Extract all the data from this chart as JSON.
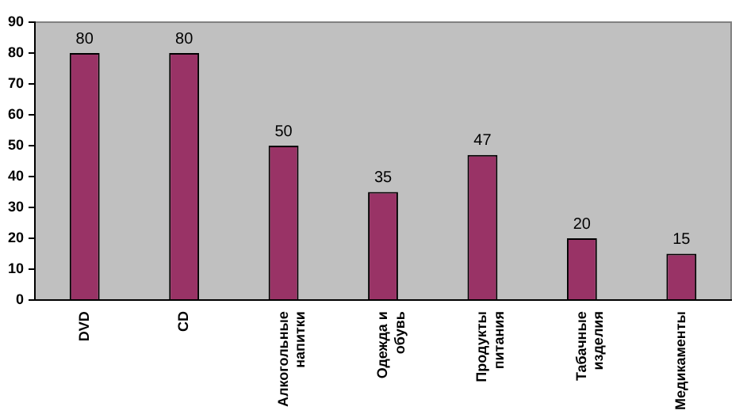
{
  "chart_data": {
    "type": "bar",
    "categories": [
      "DVD",
      "CD",
      "Алкогольные напитки",
      "Одежда и обувь",
      "Продукты питания",
      "Табачные изделия",
      "Медикаменты"
    ],
    "values": [
      80,
      80,
      50,
      35,
      47,
      20,
      15
    ],
    "color": "#993366",
    "ylim": [
      0,
      90
    ],
    "yticks": [
      0,
      10,
      20,
      30,
      40,
      50,
      60,
      70,
      80,
      90
    ],
    "grid": false,
    "legend": false,
    "data_labels": true
  }
}
